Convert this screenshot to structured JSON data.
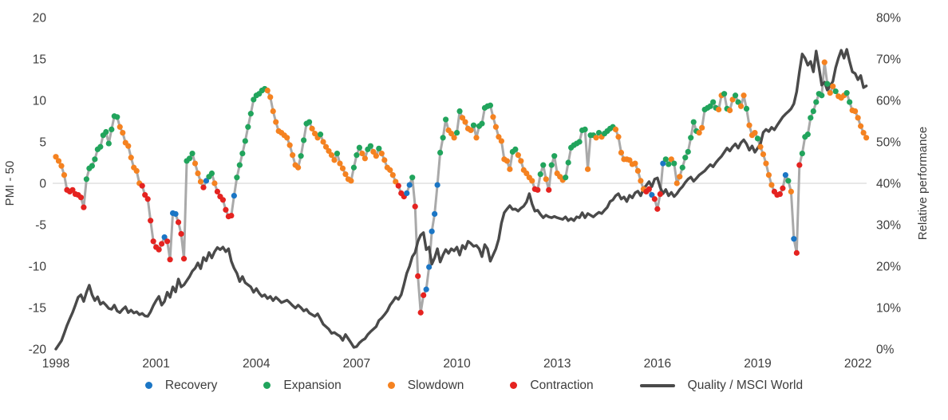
{
  "chart_data": {
    "type": "scatter+line",
    "title": "",
    "x_axis": {
      "start_year": 1998,
      "start_month": 1,
      "end_year": 2022,
      "end_month": 4,
      "tick_labels": [
        "1998",
        "2001",
        "2004",
        "2007",
        "2010",
        "2013",
        "2016",
        "2019",
        "2022"
      ],
      "tick_years": [
        1998,
        2001,
        2004,
        2007,
        2010,
        2013,
        2016,
        2019,
        2022
      ]
    },
    "left_axis": {
      "label": "PMI - 50",
      "min": -20,
      "max": 20,
      "ticks": [
        20,
        15,
        10,
        5,
        0,
        -5,
        -10,
        -15,
        -20
      ],
      "tick_labels": [
        "20",
        "15",
        "10",
        "5",
        "0",
        "-5",
        "-10",
        "-15",
        "-20"
      ]
    },
    "right_axis": {
      "label": "Relative performance",
      "min": 0,
      "max": 80,
      "ticks": [
        80,
        70,
        60,
        50,
        40,
        30,
        20,
        10,
        0
      ],
      "tick_labels": [
        "80%",
        "70%",
        "60%",
        "50%",
        "40%",
        "30%",
        "20%",
        "10%",
        "0%"
      ]
    },
    "grid": {
      "zero_line_only": true
    },
    "legend_position": "bottom",
    "phase_legend": [
      {
        "key": "R",
        "label": "Recovery",
        "color": "#1b76c5"
      },
      {
        "key": "E",
        "label": "Expansion",
        "color": "#21a45c"
      },
      {
        "key": "S",
        "label": "Slowdown",
        "color": "#f58220"
      },
      {
        "key": "C",
        "label": "Contraction",
        "color": "#e52320"
      }
    ],
    "line_legend": {
      "label": "Quality / MSCI World",
      "color": "#4a4a4a"
    },
    "colors": {
      "connector": "#a9a9a9",
      "quality_line": "#4a4a4a",
      "zero_gridline": "#d9d9d9",
      "axis_text": "#3d3d3d",
      "background": "#ffffff"
    },
    "series": [
      {
        "name": "PMI - 50 (monthly, colored by cycle phase)",
        "type": "scatter",
        "values": [
          3.2,
          2.7,
          2.1,
          1.0,
          -0.8,
          -1.0,
          -0.8,
          -1.3,
          -1.4,
          -1.7,
          -2.9,
          0.5,
          1.8,
          2.1,
          2.9,
          4.1,
          4.4,
          5.8,
          6.2,
          4.8,
          6.5,
          8.1,
          8.0,
          6.8,
          6.1,
          4.9,
          4.5,
          3.1,
          1.9,
          1.5,
          0.0,
          -0.3,
          -1.4,
          -1.9,
          -4.5,
          -7.0,
          -7.7,
          -8.0,
          -7.3,
          -6.5,
          -7.0,
          -9.2,
          -3.6,
          -3.7,
          -4.7,
          -6.1,
          -9.1,
          2.7,
          3.0,
          3.6,
          2.4,
          1.2,
          0.2,
          -0.5,
          0.3,
          0.8,
          1.2,
          0.0,
          -1.0,
          -1.6,
          -2.0,
          -3.2,
          -4.0,
          -3.9,
          -1.5,
          0.7,
          2.2,
          3.6,
          5.1,
          6.8,
          8.4,
          10.1,
          10.6,
          10.8,
          11.2,
          11.4,
          11.2,
          10.4,
          8.7,
          7.4,
          6.3,
          6.1,
          5.8,
          5.5,
          4.6,
          3.4,
          2.2,
          1.9,
          3.3,
          5.2,
          7.2,
          7.4,
          6.6,
          6.0,
          5.5,
          5.9,
          5.0,
          4.4,
          3.9,
          3.4,
          2.8,
          3.6,
          2.4,
          1.8,
          1.1,
          0.5,
          0.3,
          1.9,
          3.4,
          4.3,
          3.6,
          3.0,
          4.1,
          4.5,
          3.8,
          3.3,
          4.2,
          3.6,
          2.8,
          1.9,
          1.6,
          1.0,
          0.2,
          -0.3,
          -1.2,
          -1.6,
          -1.2,
          -0.2,
          0.7,
          -2.8,
          -11.2,
          -15.6,
          -13.5,
          -12.8,
          -10.1,
          -5.8,
          -3.7,
          -0.2,
          3.7,
          5.5,
          7.7,
          6.4,
          6.0,
          5.5,
          6.1,
          8.7,
          7.9,
          7.4,
          6.6,
          6.4,
          7.0,
          5.5,
          6.9,
          7.2,
          9.1,
          9.3,
          9.4,
          8.0,
          6.8,
          5.6,
          5.1,
          2.9,
          2.7,
          1.7,
          3.8,
          4.1,
          3.4,
          2.7,
          1.6,
          1.2,
          0.7,
          0.3,
          -0.7,
          -0.8,
          1.1,
          2.2,
          0.5,
          -0.8,
          2.2,
          3.3,
          1.2,
          0.8,
          0.4,
          0.7,
          2.5,
          4.3,
          4.6,
          4.8,
          5.0,
          6.4,
          6.5,
          1.7,
          5.8,
          5.8,
          5.5,
          6.1,
          5.6,
          6.0,
          6.3,
          6.6,
          6.8,
          6.5,
          5.6,
          3.7,
          2.9,
          2.9,
          2.8,
          2.3,
          2.4,
          1.5,
          0.3,
          -0.7,
          -1.0,
          -0.7,
          -1.4,
          -1.9,
          -3.1,
          -1.3,
          2.4,
          2.9,
          2.3,
          2.9,
          2.4,
          0.0,
          0.8,
          1.9,
          3.1,
          3.8,
          5.5,
          7.4,
          6.3,
          6.1,
          6.7,
          8.9,
          9.1,
          9.3,
          9.8,
          9.1,
          8.9,
          10.6,
          10.8,
          9.0,
          8.8,
          10.1,
          10.6,
          9.8,
          9.3,
          10.6,
          9.0,
          7.0,
          5.8,
          6.1,
          5.4,
          4.4,
          3.5,
          2.4,
          1.0,
          -0.2,
          -1.0,
          -1.4,
          -1.3,
          -0.6,
          1.0,
          0.3,
          -1.0,
          -6.7,
          -8.4,
          2.2,
          3.6,
          5.6,
          5.9,
          7.9,
          8.7,
          9.8,
          10.8,
          10.6,
          14.6,
          12.0,
          10.9,
          11.7,
          11.1,
          10.5,
          10.3,
          10.6,
          10.9,
          9.8,
          8.8,
          8.7,
          7.9,
          6.9,
          6.1,
          5.5
        ],
        "phases": "SSSSCCCCCCCEEEEEEEEEEEESSSSSSSSCCCCCCCCRCCRRCCCEEESSSCREESCCCCCCREEEEEEEEEEESSSSSSSSSSSSEEEESSSESSSSSESSSSSEEESSEESSESSSSSSCCCRRECCCCRRRRREEESSSEESSSSESEEEEESSSSSSSEESSSSSSCCEESCEESSSEEEEEEEESEESESEEEESSSSSSSSSSSCCRCCCREESESSEEEEEESSEEEEESSEESSEESSESSSESSSSSCCCCRESRCCEEEEEEEESESSESSSEESSSSSSS"
      },
      {
        "name": "Quality / MSCI World",
        "type": "line",
        "unit": "%",
        "values": [
          0.0,
          1.0,
          2.0,
          3.8,
          5.7,
          7.3,
          8.8,
          10.6,
          12.5,
          13.1,
          11.5,
          13.7,
          15.4,
          13.1,
          11.7,
          12.6,
          10.8,
          11.3,
          10.6,
          9.8,
          9.6,
          10.6,
          9.2,
          8.8,
          9.6,
          10.2,
          8.8,
          9.4,
          8.7,
          9.0,
          8.3,
          8.6,
          8.0,
          7.9,
          9.0,
          10.5,
          11.7,
          12.7,
          10.6,
          11.5,
          13.7,
          12.5,
          15.0,
          13.8,
          16.9,
          15.0,
          15.5,
          16.5,
          17.5,
          18.8,
          19.5,
          20.8,
          19.4,
          22.1,
          21.3,
          23.3,
          22.0,
          23.5,
          24.5,
          24.0,
          24.6,
          23.5,
          24.2,
          21.2,
          19.5,
          18.3,
          16.3,
          17.5,
          16.0,
          15.5,
          15.0,
          13.7,
          14.6,
          13.5,
          12.7,
          13.1,
          12.2,
          12.7,
          11.7,
          12.5,
          11.9,
          11.2,
          11.5,
          11.8,
          11.2,
          10.5,
          9.9,
          10.6,
          10.0,
          9.2,
          9.6,
          8.7,
          8.3,
          7.9,
          8.5,
          7.3,
          6.0,
          5.4,
          4.8,
          3.8,
          4.0,
          3.5,
          3.1,
          2.1,
          3.5,
          2.5,
          1.5,
          0.4,
          0.6,
          1.5,
          2.1,
          2.5,
          3.5,
          4.2,
          4.8,
          5.4,
          6.9,
          7.5,
          8.3,
          9.2,
          10.6,
          11.5,
          12.5,
          12.0,
          13.1,
          15.6,
          18.3,
          20.0,
          22.3,
          23.3,
          26.0,
          27.5,
          28.1,
          24.0,
          24.6,
          20.5,
          22.0,
          24.2,
          21.0,
          22.7,
          24.0,
          23.1,
          24.2,
          23.7,
          24.6,
          22.7,
          25.0,
          24.2,
          26.0,
          25.5,
          24.8,
          25.0,
          24.2,
          22.3,
          25.2,
          24.2,
          21.2,
          22.7,
          24.2,
          26.5,
          30.4,
          32.9,
          33.8,
          34.6,
          33.7,
          33.8,
          33.3,
          34.0,
          34.5,
          35.5,
          37.5,
          35.0,
          33.3,
          33.5,
          32.5,
          31.7,
          32.3,
          31.9,
          31.7,
          32.0,
          31.7,
          31.5,
          31.3,
          31.9,
          31.0,
          31.5,
          31.0,
          31.9,
          31.7,
          32.9,
          31.7,
          32.7,
          32.3,
          31.9,
          32.5,
          33.0,
          32.7,
          33.5,
          34.2,
          35.6,
          36.0,
          37.0,
          37.5,
          36.2,
          36.7,
          35.6,
          37.1,
          36.5,
          37.7,
          38.1,
          37.0,
          38.7,
          39.5,
          40.4,
          39.2,
          41.0,
          41.3,
          39.0,
          37.5,
          38.5,
          37.0,
          37.8,
          36.8,
          37.5,
          38.5,
          39.2,
          40.2,
          41.0,
          41.5,
          40.5,
          41.2,
          42.0,
          42.5,
          43.0,
          43.8,
          44.5,
          44.0,
          45.0,
          45.8,
          46.5,
          47.5,
          48.5,
          47.8,
          48.8,
          49.5,
          48.5,
          49.8,
          50.5,
          49.5,
          48.0,
          49.0,
          47.5,
          48.5,
          49.5,
          52.3,
          53.0,
          52.5,
          53.5,
          52.9,
          54.0,
          55.0,
          56.0,
          56.7,
          57.3,
          58.0,
          59.2,
          62.1,
          66.9,
          71.2,
          70.2,
          68.5,
          69.4,
          66.9,
          71.9,
          68.0,
          63.7,
          64.4,
          62.5,
          63.5,
          64.6,
          67.9,
          70.2,
          72.1,
          70.2,
          72.3,
          69.4,
          66.9,
          66.5,
          65.0,
          66.0,
          63.1,
          63.5
        ]
      }
    ]
  },
  "legend": {
    "items": [
      "Recovery",
      "Expansion",
      "Slowdown",
      "Contraction",
      "Quality / MSCI World"
    ]
  }
}
